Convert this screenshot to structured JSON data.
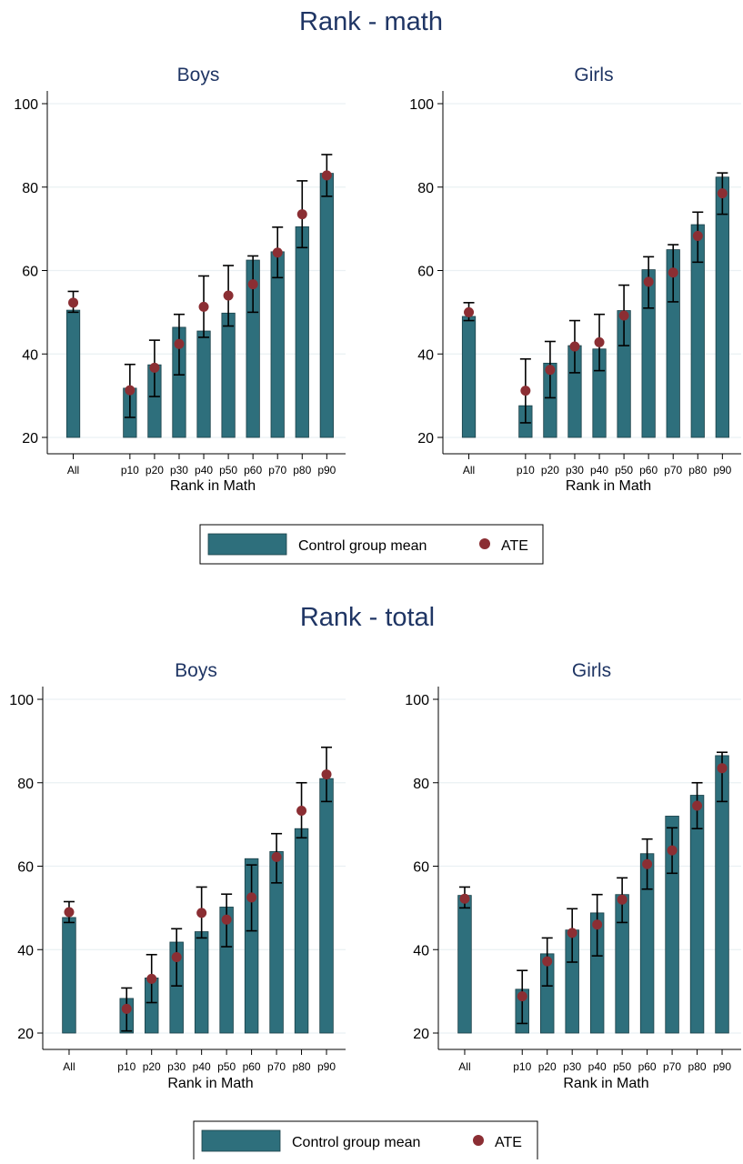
{
  "colors": {
    "bar_fill": "#2e6f7c",
    "bar_edge": "#1a3f47",
    "ate_marker": "#8b2e33",
    "title_text": "#1f3564",
    "grid": "#eaf0f3",
    "axis": "#000000"
  },
  "sections": [
    {
      "title": "Rank - math",
      "legend": {
        "bar_label": "Control group mean",
        "marker_label": "ATE"
      }
    },
    {
      "title": "Rank - total",
      "legend": {
        "bar_label": "Control group mean",
        "marker_label": "ATE"
      }
    }
  ],
  "chart_data": [
    {
      "type": "bar",
      "section": "Rank - math",
      "title": "Boys",
      "xlabel": "Rank in Math",
      "ylabel": "",
      "categories": [
        "All",
        "p10",
        "p20",
        "p30",
        "p40",
        "p50",
        "p60",
        "p70",
        "p80",
        "p90"
      ],
      "ylim": [
        20,
        100
      ],
      "yticks": [
        20,
        40,
        60,
        80,
        100
      ],
      "grid": true,
      "series": [
        {
          "name": "Control group mean",
          "kind": "bar",
          "values": [
            50.5,
            31.8,
            37.4,
            46.4,
            45.5,
            49.8,
            62.5,
            64.5,
            70.5,
            83.3
          ]
        },
        {
          "name": "ATE",
          "kind": "marker",
          "values": [
            52.3,
            31.3,
            36.7,
            42.4,
            51.3,
            54.0,
            56.7,
            64.3,
            73.5,
            82.8
          ],
          "ci_low": [
            50.0,
            24.8,
            29.8,
            35.0,
            44.0,
            46.7,
            50.0,
            58.3,
            65.5,
            77.8
          ],
          "ci_high": [
            55.0,
            37.5,
            43.3,
            49.5,
            58.7,
            61.2,
            63.5,
            70.4,
            81.5,
            87.8
          ]
        }
      ]
    },
    {
      "type": "bar",
      "section": "Rank - math",
      "title": "Girls",
      "xlabel": "Rank in Math",
      "ylabel": "",
      "categories": [
        "All",
        "p10",
        "p20",
        "p30",
        "p40",
        "p50",
        "p60",
        "p70",
        "p80",
        "p90"
      ],
      "ylim": [
        20,
        100
      ],
      "yticks": [
        20,
        40,
        60,
        80,
        100
      ],
      "grid": true,
      "series": [
        {
          "name": "Control group mean",
          "kind": "bar",
          "values": [
            49.0,
            27.6,
            37.8,
            42.0,
            41.2,
            50.4,
            60.2,
            65.0,
            71.0,
            82.4
          ]
        },
        {
          "name": "ATE",
          "kind": "marker",
          "values": [
            50.0,
            31.2,
            36.2,
            41.8,
            42.8,
            49.2,
            57.3,
            59.5,
            68.3,
            78.5
          ],
          "ci_low": [
            48.0,
            23.5,
            29.5,
            35.5,
            36.0,
            42.0,
            51.0,
            52.5,
            62.0,
            73.5
          ],
          "ci_high": [
            52.3,
            38.8,
            43.0,
            48.0,
            49.5,
            56.5,
            63.3,
            66.2,
            74.0,
            83.4
          ]
        }
      ]
    },
    {
      "type": "bar",
      "section": "Rank - total",
      "title": "Boys",
      "xlabel": "Rank in Math",
      "ylabel": "",
      "categories": [
        "All",
        "p10",
        "p20",
        "p30",
        "p40",
        "p50",
        "p60",
        "p70",
        "p80",
        "p90"
      ],
      "ylim": [
        20,
        100
      ],
      "yticks": [
        20,
        40,
        60,
        80,
        100
      ],
      "grid": true,
      "series": [
        {
          "name": "Control group mean",
          "kind": "bar",
          "values": [
            47.7,
            28.3,
            33.2,
            41.8,
            44.3,
            50.2,
            61.8,
            63.5,
            69.0,
            81.0
          ]
        },
        {
          "name": "ATE",
          "kind": "marker",
          "values": [
            49.0,
            25.8,
            33.0,
            38.2,
            48.8,
            47.2,
            52.5,
            62.2,
            73.3,
            82.0
          ],
          "ci_low": [
            46.5,
            20.5,
            27.3,
            31.3,
            42.8,
            40.7,
            44.5,
            56.0,
            66.8,
            75.5
          ],
          "ci_high": [
            51.5,
            30.8,
            38.8,
            45.0,
            55.0,
            53.3,
            60.3,
            67.8,
            80.0,
            88.5
          ]
        }
      ]
    },
    {
      "type": "bar",
      "section": "Rank - total",
      "title": "Girls",
      "xlabel": "Rank in Math",
      "ylabel": "",
      "categories": [
        "All",
        "p10",
        "p20",
        "p30",
        "p40",
        "p50",
        "p60",
        "p70",
        "p80",
        "p90"
      ],
      "ylim": [
        20,
        100
      ],
      "yticks": [
        20,
        40,
        60,
        80,
        100
      ],
      "grid": true,
      "series": [
        {
          "name": "Control group mean",
          "kind": "bar",
          "values": [
            53.0,
            30.5,
            39.0,
            44.7,
            48.8,
            53.2,
            63.0,
            72.0,
            77.0,
            86.5
          ]
        },
        {
          "name": "ATE",
          "kind": "marker",
          "values": [
            52.2,
            28.8,
            37.2,
            44.0,
            46.0,
            52.0,
            60.5,
            63.8,
            74.5,
            83.5
          ],
          "ci_low": [
            50.0,
            22.3,
            31.3,
            37.0,
            38.5,
            46.5,
            54.5,
            58.3,
            69.0,
            75.5
          ],
          "ci_high": [
            55.0,
            35.0,
            42.8,
            49.8,
            53.2,
            57.2,
            66.5,
            69.2,
            80.0,
            87.3
          ]
        }
      ]
    }
  ]
}
